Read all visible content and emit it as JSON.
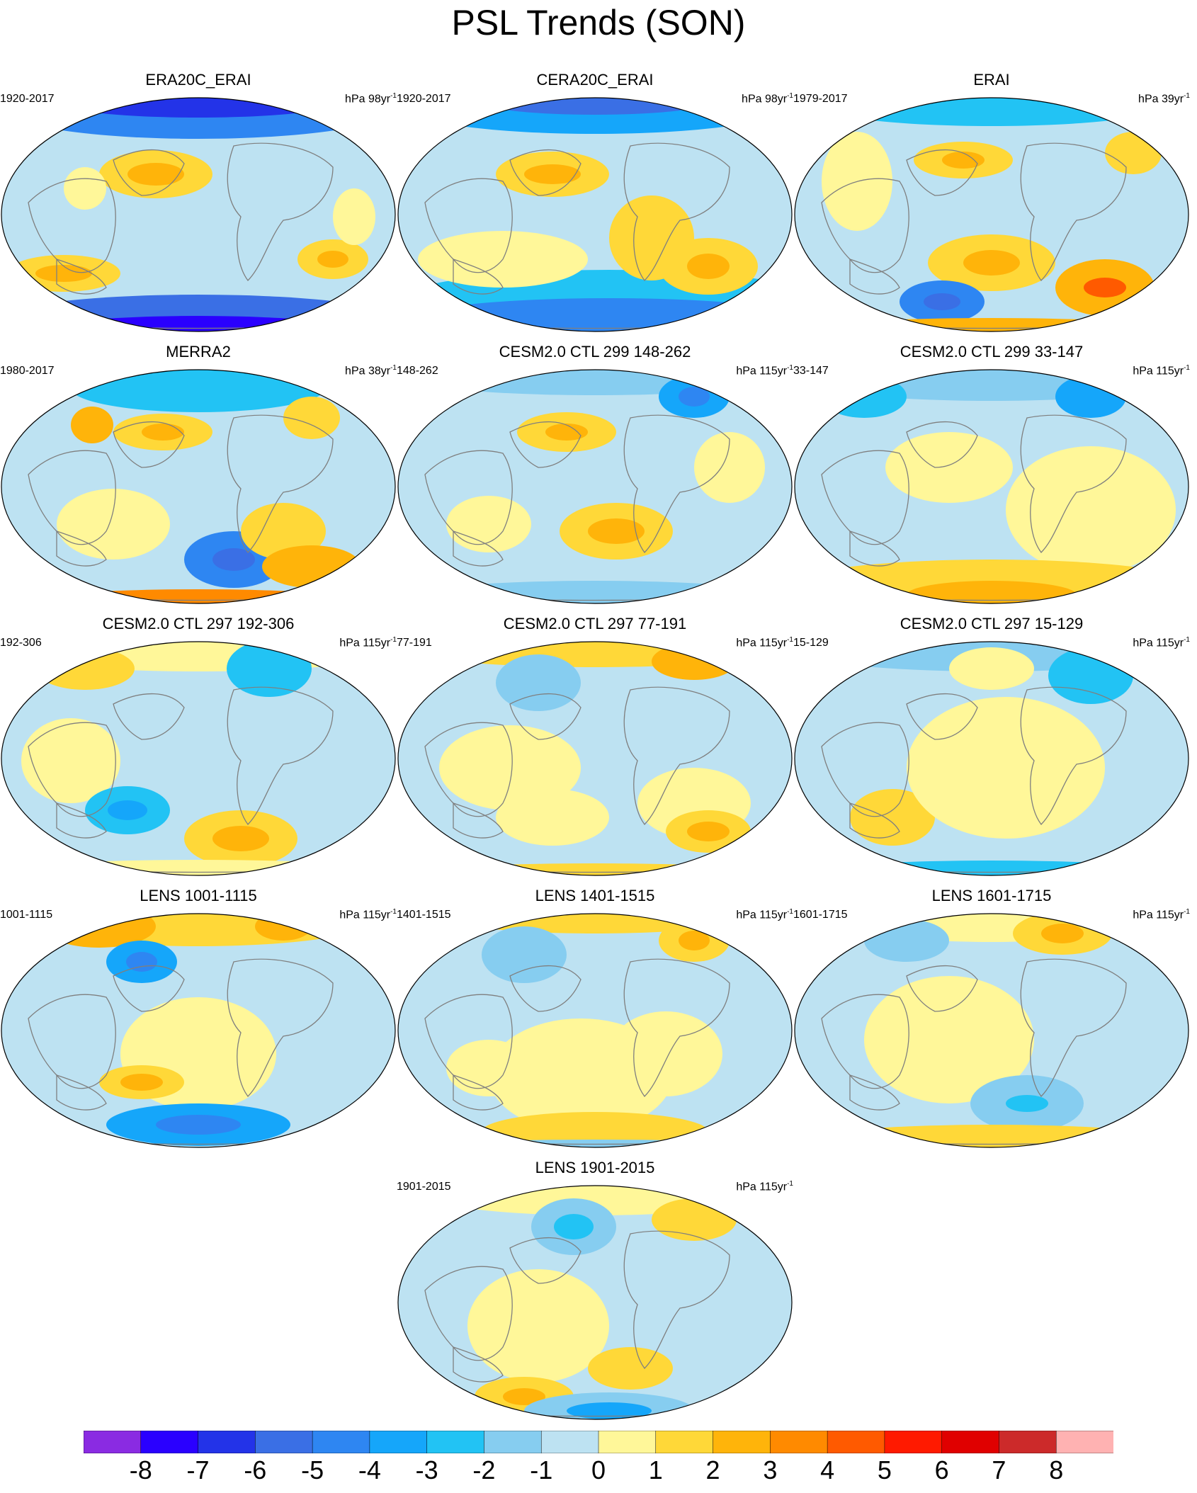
{
  "title": "PSL Trends (SON)",
  "units_prefix": "hPa ",
  "units_suffix": "yr",
  "units_exp": "-1",
  "colors": {
    "levels": [
      "#8a2be2",
      "#2a00ff",
      "#2333e8",
      "#3a6fe5",
      "#2e86f2",
      "#15a6fa",
      "#22c3f4",
      "#86cdf0",
      "#bde2f2",
      "#fff799",
      "#ffd838",
      "#ffb40a",
      "#ff8a00",
      "#ff5a00",
      "#ff1a00",
      "#e00000",
      "#cc2a2a",
      "#ffb2b2"
    ],
    "land_outline": "#7f7f7f"
  },
  "colorbar": {
    "labels": [
      "-8",
      "-7",
      "-6",
      "-5",
      "-4",
      "-3",
      "-2",
      "-1",
      "0",
      "1",
      "2",
      "3",
      "4",
      "5",
      "6",
      "7",
      "8"
    ]
  },
  "panels": [
    {
      "title": "ERA20C_ERAI",
      "period": "1920-2017",
      "units_val": "98"
    },
    {
      "title": "CERA20C_ERAI",
      "period": "1920-2017",
      "units_val": "98"
    },
    {
      "title": "ERAI",
      "period": "1979-2017",
      "units_val": "39"
    },
    {
      "title": "MERRA2",
      "period": "1980-2017",
      "units_val": "38"
    },
    {
      "title": "CESM2.0 CTL 299 148-262",
      "period": "148-262",
      "units_val": "115"
    },
    {
      "title": "CESM2.0 CTL 299 33-147",
      "period": "33-147",
      "units_val": "115"
    },
    {
      "title": "CESM2.0 CTL 297 192-306",
      "period": "192-306",
      "units_val": "115"
    },
    {
      "title": "CESM2.0 CTL 297 77-191",
      "period": "77-191",
      "units_val": "115"
    },
    {
      "title": "CESM2.0 CTL 297 15-129",
      "period": "15-129",
      "units_val": "115"
    },
    {
      "title": "LENS 1001-1115",
      "period": "1001-1115",
      "units_val": "115"
    },
    {
      "title": "LENS 1401-1515",
      "period": "1401-1515",
      "units_val": "115"
    },
    {
      "title": "LENS 1601-1715",
      "period": "1601-1715",
      "units_val": "115"
    },
    {
      "title": "LENS 1901-2015",
      "period": "1901-2015",
      "units_val": "115"
    }
  ]
}
